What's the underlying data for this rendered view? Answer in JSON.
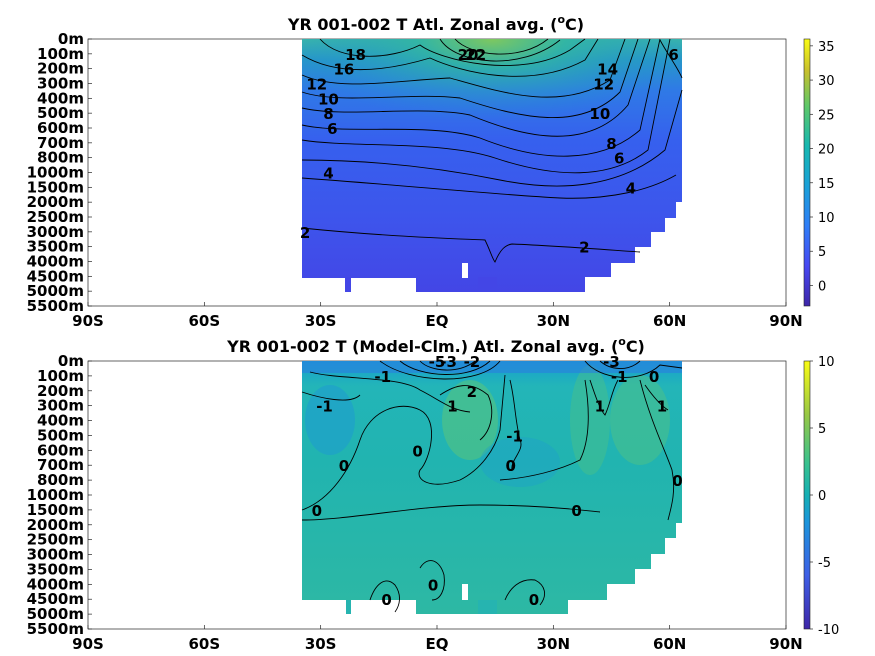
{
  "chart_data": [
    {
      "type": "heatmap",
      "title": "YR 001-002 T Atl. Zonal avg. (",
      "title_unit_sup": "o",
      "title_unit_end": "C)",
      "x_ticks": [
        "90S",
        "60S",
        "30S",
        "EQ",
        "30N",
        "60N",
        "90N"
      ],
      "y_ticks": [
        "0m",
        "100m",
        "200m",
        "300m",
        "400m",
        "500m",
        "600m",
        "700m",
        "800m",
        "1000m",
        "1500m",
        "2000m",
        "2500m",
        "3000m",
        "3500m",
        "4000m",
        "4500m",
        "5000m",
        "5500m"
      ],
      "colorbar_ticks": [
        "35",
        "30",
        "25",
        "20",
        "15",
        "10",
        "5",
        "0"
      ],
      "colorbar_range": [
        -3,
        36
      ],
      "data_extent_lat": [
        -35,
        63
      ],
      "contour_labels": [
        {
          "text": "22",
          "lat": 10,
          "depth": "100m"
        },
        {
          "text": "20",
          "lat": 8,
          "depth": "100m"
        },
        {
          "text": "18",
          "lat": -21,
          "depth": "100m"
        },
        {
          "text": "16",
          "lat": -24,
          "depth": "200m"
        },
        {
          "text": "14",
          "lat": 44,
          "depth": "200m"
        },
        {
          "text": "12",
          "lat": 43,
          "depth": "300m"
        },
        {
          "text": "12",
          "lat": -31,
          "depth": "300m"
        },
        {
          "text": "10",
          "lat": -28,
          "depth": "400m"
        },
        {
          "text": "10",
          "lat": 42,
          "depth": "500m"
        },
        {
          "text": "8",
          "lat": -28,
          "depth": "500m"
        },
        {
          "text": "8",
          "lat": 45,
          "depth": "700m"
        },
        {
          "text": "6",
          "lat": -27,
          "depth": "600m"
        },
        {
          "text": "6",
          "lat": 61,
          "depth": "100m"
        },
        {
          "text": "6",
          "lat": 47,
          "depth": "800m"
        },
        {
          "text": "4",
          "lat": -28,
          "depth": "1000m"
        },
        {
          "text": "4",
          "lat": 50,
          "depth": "1500m"
        },
        {
          "text": "2",
          "lat": -34,
          "depth": "3000m"
        },
        {
          "text": "2",
          "lat": 38,
          "depth": "3500m"
        }
      ]
    },
    {
      "type": "heatmap",
      "title": "YR 001-002 T (Model-Clm.) Atl. Zonal avg. (",
      "title_unit_sup": "o",
      "title_unit_end": "C)",
      "x_ticks": [
        "90S",
        "60S",
        "30S",
        "EQ",
        "30N",
        "60N",
        "90N"
      ],
      "y_ticks": [
        "0m",
        "100m",
        "200m",
        "300m",
        "400m",
        "500m",
        "600m",
        "700m",
        "800m",
        "1000m",
        "1500m",
        "2000m",
        "2500m",
        "3000m",
        "3500m",
        "4000m",
        "4500m",
        "5000m",
        "5500m"
      ],
      "colorbar_ticks": [
        "10",
        "5",
        "0",
        "-5",
        "-10"
      ],
      "colorbar_range": [
        -10,
        10
      ],
      "data_extent_lat": [
        -35,
        63
      ],
      "contour_labels": [
        {
          "text": "-1",
          "lat": -14,
          "depth": "100m"
        },
        {
          "text": "-1",
          "lat": -29,
          "depth": "300m"
        },
        {
          "text": "-1",
          "lat": 20,
          "depth": "500m"
        },
        {
          "text": "-5",
          "lat": 0,
          "depth": "0m"
        },
        {
          "text": "-3",
          "lat": 3,
          "depth": "0m"
        },
        {
          "text": "-2",
          "lat": 9,
          "depth": "0m"
        },
        {
          "text": "-3",
          "lat": 45,
          "depth": "0m"
        },
        {
          "text": "-1",
          "lat": 47,
          "depth": "100m"
        },
        {
          "text": "1",
          "lat": 4,
          "depth": "300m"
        },
        {
          "text": "2",
          "lat": 9,
          "depth": "200m"
        },
        {
          "text": "1",
          "lat": 42,
          "depth": "300m"
        },
        {
          "text": "1",
          "lat": 58,
          "depth": "300m"
        },
        {
          "text": "0",
          "lat": 56,
          "depth": "100m"
        },
        {
          "text": "0",
          "lat": -24,
          "depth": "700m"
        },
        {
          "text": "0",
          "lat": -5,
          "depth": "600m"
        },
        {
          "text": "0",
          "lat": 19,
          "depth": "700m"
        },
        {
          "text": "0",
          "lat": 62,
          "depth": "800m"
        },
        {
          "text": "0",
          "lat": -31,
          "depth": "1500m"
        },
        {
          "text": "0",
          "lat": 36,
          "depth": "1500m"
        },
        {
          "text": "0",
          "lat": -1,
          "depth": "4000m"
        },
        {
          "text": "0",
          "lat": -13,
          "depth": "4500m"
        },
        {
          "text": "0",
          "lat": 25,
          "depth": "4500m"
        }
      ]
    }
  ]
}
